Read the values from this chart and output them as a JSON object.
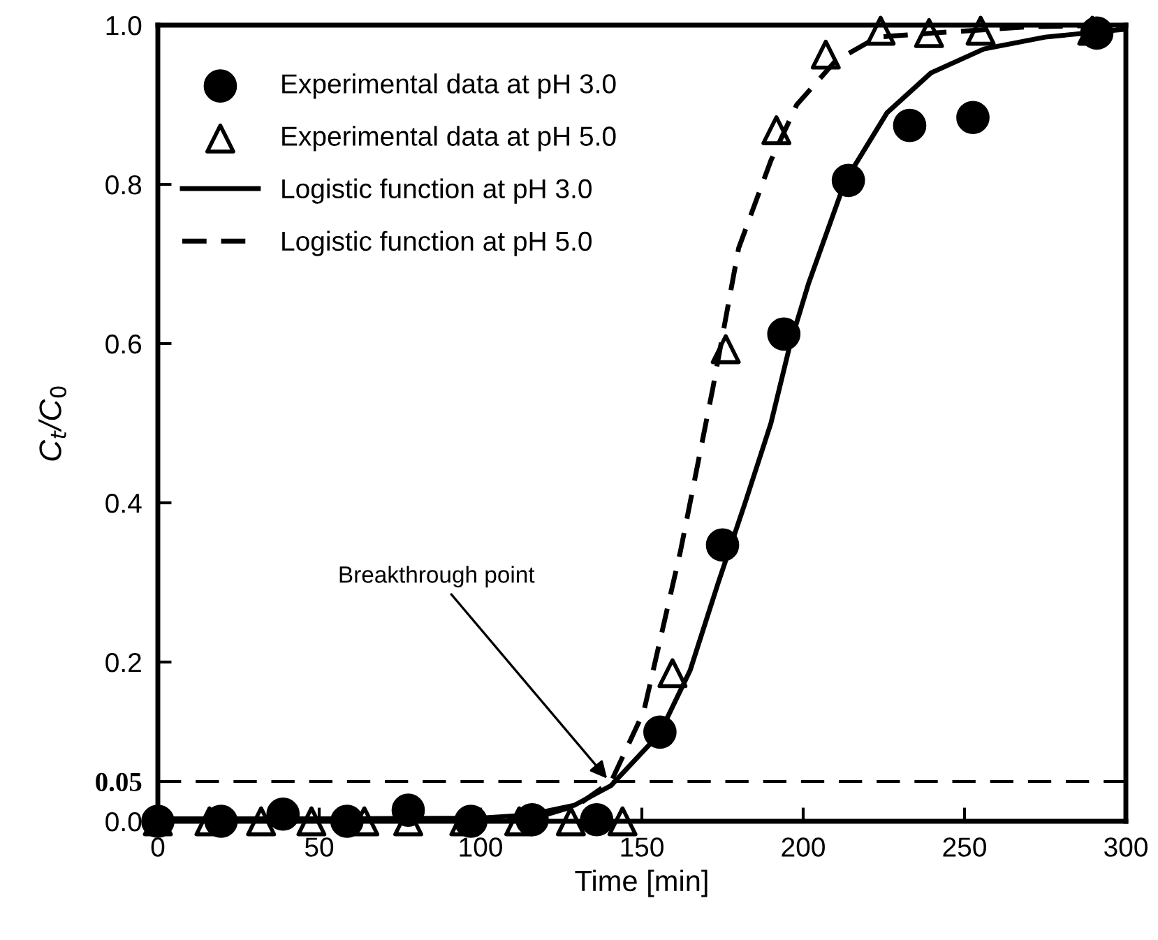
{
  "chart_data": {
    "type": "scatter",
    "xlabel": "Time [min]",
    "ylabel": "C$_{t}$/C$_{0}$",
    "xlim": [
      0,
      300
    ],
    "xticks": [
      0,
      50,
      100,
      150,
      200,
      250,
      300
    ],
    "ylim": [
      0,
      1.0
    ],
    "yticks": [
      {
        "value": 0,
        "label": "0.0"
      },
      {
        "value": 0.05,
        "label": "0.05"
      },
      {
        "value": 0.2,
        "label": "0.2"
      },
      {
        "value": 0.4,
        "label": "0.4"
      },
      {
        "value": 0.6,
        "label": "0.6"
      },
      {
        "value": 0.8,
        "label": "0.8"
      },
      {
        "value": 1.0,
        "label": "1.0"
      }
    ],
    "grid": false,
    "legend": "top left",
    "series": [
      {
        "name": "Experimental data at pH 3.0",
        "marker": "circle",
        "color": "#000000",
        "x": [
          0,
          19.6,
          38.8,
          58.6,
          77.6,
          97,
          116,
          136,
          155.6,
          175,
          194,
          214,
          233,
          252.6,
          291
        ],
        "values": [
          0,
          0,
          0.009,
          0,
          0.014,
          0,
          0.002,
          0.002,
          0.112,
          0.347,
          0.612,
          0.805,
          0.874,
          0.884,
          0.99
        ]
      },
      {
        "name": "Experimental data at pH 5.0",
        "marker": "triangle",
        "color": "#000000",
        "x": [
          0,
          16,
          32,
          47.6,
          64,
          77.6,
          95,
          112,
          128,
          144,
          159.5,
          176,
          191.7,
          207,
          224,
          239,
          255,
          289.6
        ],
        "values": [
          0,
          0,
          0,
          0,
          0,
          0,
          0,
          0,
          0,
          0,
          0.186,
          0.593,
          0.868,
          0.963,
          0.993,
          0.99,
          0.993,
          0.993
        ]
      },
      {
        "name": "Logistic function at pH 3.0",
        "type": "line",
        "line_style": "solid",
        "marker": "none",
        "color": "#000000",
        "x": [
          0,
          50,
          100,
          115,
          129,
          140.5,
          155.5,
          165,
          173.7,
          182,
          190,
          196,
          201.7,
          213,
          226,
          239.6,
          256,
          275,
          300
        ],
        "values": [
          0.003,
          0.003,
          0.004,
          0.008,
          0.02,
          0.045,
          0.11,
          0.19,
          0.3,
          0.4,
          0.5,
          0.6,
          0.676,
          0.804,
          0.89,
          0.94,
          0.97,
          0.985,
          0.995
        ]
      },
      {
        "name": "Logistic function at pH 5.0",
        "type": "line",
        "line_style": "dashed",
        "marker": "none",
        "color": "#000000",
        "x": [
          0,
          50,
          100,
          120,
          130,
          140.5,
          150.6,
          162,
          172,
          180,
          190,
          198,
          210,
          223,
          240,
          270,
          300
        ],
        "values": [
          0.002,
          0.002,
          0.003,
          0.008,
          0.02,
          0.05,
          0.138,
          0.34,
          0.544,
          0.72,
          0.83,
          0.9,
          0.955,
          0.985,
          0.99,
          0.998,
          1.0
        ]
      }
    ],
    "ref_lines": [
      {
        "axis": "y",
        "value": 0.05,
        "color": "#000000",
        "line_style": "dashed"
      }
    ],
    "annotations": [
      {
        "text": "Breakthrough point",
        "x": 140,
        "y": 0.05
      }
    ]
  }
}
